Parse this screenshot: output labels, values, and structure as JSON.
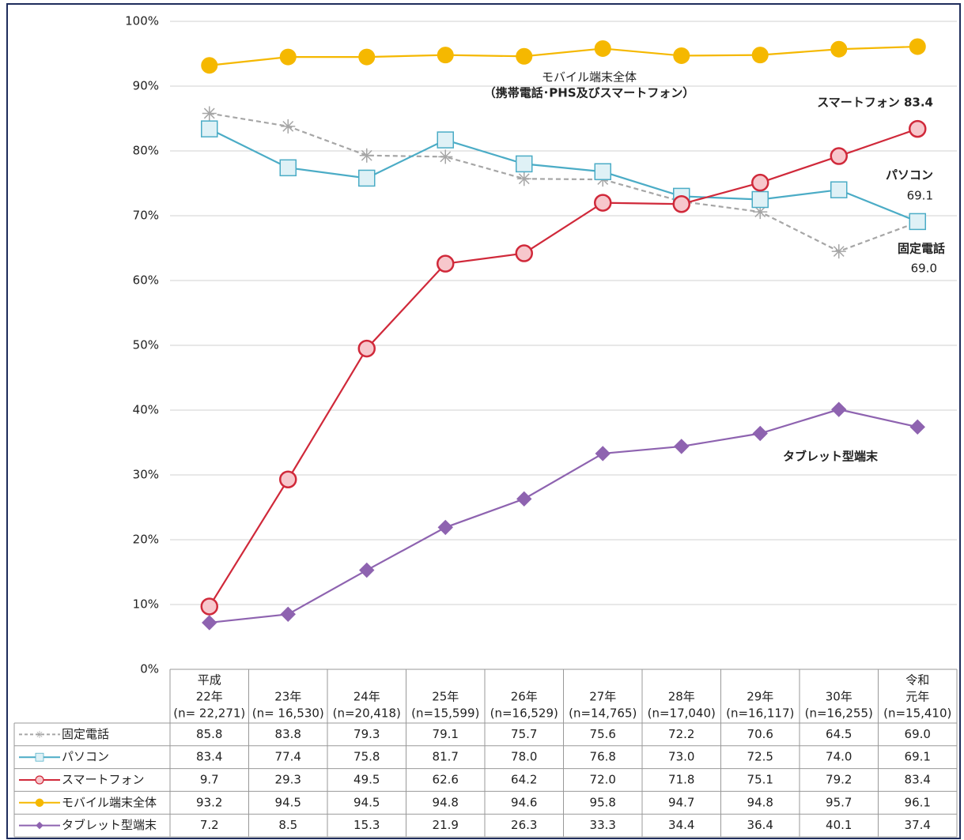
{
  "chart_data": {
    "type": "line",
    "categories": [
      [
        "平成",
        "22年",
        "(n= 22,271)"
      ],
      [
        "23年",
        "(n= 16,530)"
      ],
      [
        "24年",
        "(n=20,418)"
      ],
      [
        "25年",
        "(n=15,599)"
      ],
      [
        "26年",
        "(n=16,529)"
      ],
      [
        "27年",
        "(n=14,765)"
      ],
      [
        "28年",
        "(n=17,040)"
      ],
      [
        "29年",
        "(n=16,117)"
      ],
      [
        "30年",
        "(n=16,255)"
      ],
      [
        "令和",
        "元年",
        "(n=15,410)"
      ]
    ],
    "series": [
      {
        "name": "固定電話",
        "color": "#a6a6a6",
        "dash": true,
        "marker": "asterisk",
        "values": [
          85.8,
          83.8,
          79.3,
          79.1,
          75.7,
          75.6,
          72.2,
          70.6,
          64.5,
          69.0
        ],
        "value_labels": [
          "85.8",
          "83.8",
          "79.3",
          "79.1",
          "75.7",
          "75.6",
          "72.2",
          "70.6",
          "64.5",
          "69.0"
        ]
      },
      {
        "name": "パソコン",
        "color": "#4bacc6",
        "marker": "square",
        "values": [
          83.4,
          77.4,
          75.8,
          81.7,
          78.0,
          76.8,
          73.0,
          72.5,
          74.0,
          69.1
        ],
        "value_labels": [
          "83.4",
          "77.4",
          "75.8",
          "81.7",
          "78.0",
          "76.8",
          "73.0",
          "72.5",
          "74.0",
          "69.1"
        ]
      },
      {
        "name": "スマートフォン",
        "color": "#d0293a",
        "marker": "circle",
        "values": [
          9.7,
          29.3,
          49.5,
          62.6,
          64.2,
          72.0,
          71.8,
          75.1,
          79.2,
          83.4
        ],
        "value_labels": [
          "9.7",
          "29.3",
          "49.5",
          "62.6",
          "64.2",
          "72.0",
          "71.8",
          "75.1",
          "79.2",
          "83.4"
        ]
      },
      {
        "name": "モバイル端末全体",
        "color": "#f5b800",
        "marker": "dot",
        "values": [
          93.2,
          94.5,
          94.5,
          94.8,
          94.6,
          95.8,
          94.7,
          94.8,
          95.7,
          96.1
        ],
        "value_labels": [
          "93.2",
          "94.5",
          "94.5",
          "94.8",
          "94.6",
          "95.8",
          "94.7",
          "94.8",
          "95.7",
          "96.1"
        ]
      },
      {
        "name": "タブレット型端末",
        "color": "#8e63b0",
        "marker": "diamond",
        "values": [
          7.2,
          8.5,
          15.3,
          21.9,
          26.3,
          33.3,
          34.4,
          36.4,
          40.1,
          37.4
        ],
        "value_labels": [
          "7.2",
          "8.5",
          "15.3",
          "21.9",
          "26.3",
          "33.3",
          "34.4",
          "36.4",
          "40.1",
          "37.4"
        ]
      }
    ],
    "ylim": [
      0,
      100
    ],
    "yticks": [
      {
        "value": 0,
        "label": "0%"
      },
      {
        "value": 10,
        "label": "10%"
      },
      {
        "value": 20,
        "label": "20%"
      },
      {
        "value": 30,
        "label": "30%"
      },
      {
        "value": 40,
        "label": "40%"
      },
      {
        "value": 50,
        "label": "50%"
      },
      {
        "value": 60,
        "label": "60%"
      },
      {
        "value": 70,
        "label": "70%"
      },
      {
        "value": 80,
        "label": "80%"
      },
      {
        "value": 90,
        "label": "90%"
      },
      {
        "value": 100,
        "label": "100%"
      }
    ],
    "grid": true,
    "annotations": [
      {
        "lines": [
          "モバイル端末全体",
          "（携帯電話･PHS及びスマートフォン）"
        ]
      },
      {
        "lines": [
          "スマートフォン 83.4"
        ]
      },
      {
        "lines": [
          "パソコン",
          "69.1"
        ]
      },
      {
        "lines": [
          "固定電話",
          "69.0"
        ]
      },
      {
        "lines": [
          "タブレット型端末"
        ]
      }
    ]
  }
}
